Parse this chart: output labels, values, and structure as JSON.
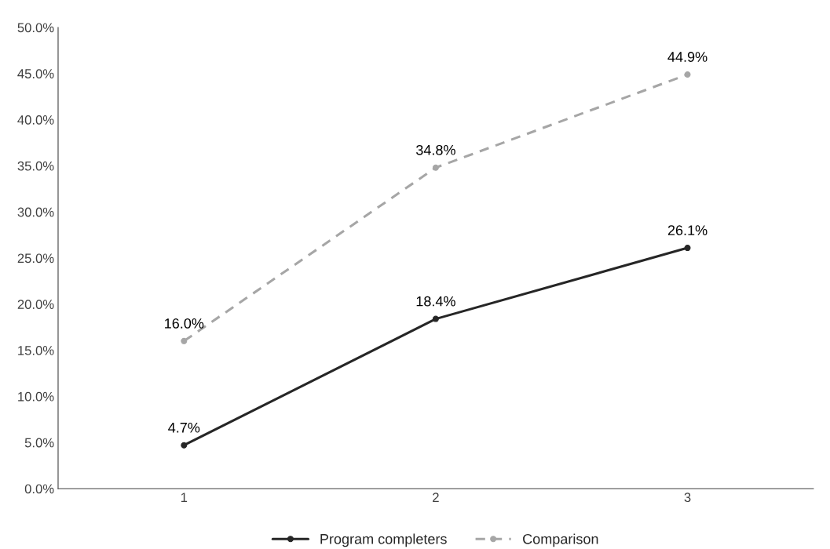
{
  "chart_data": {
    "type": "line",
    "categories": [
      "1",
      "2",
      "3"
    ],
    "series": [
      {
        "name": "Program completers",
        "color": "#262626",
        "values": [
          4.7,
          18.4,
          26.1
        ],
        "value_labels": [
          "4.7%",
          "18.4%",
          "26.1%"
        ],
        "line_style": "solid"
      },
      {
        "name": "Comparison",
        "color": "#a6a6a6",
        "values": [
          16.0,
          34.8,
          44.9
        ],
        "value_labels": [
          "16.0%",
          "34.8%",
          "44.9%"
        ],
        "line_style": "dashed"
      }
    ],
    "ylim": [
      0,
      50
    ],
    "yticks": [
      {
        "value": 0,
        "label": "0.0%"
      },
      {
        "value": 5,
        "label": "5.0%"
      },
      {
        "value": 10,
        "label": "10.0%"
      },
      {
        "value": 15,
        "label": "15.0%"
      },
      {
        "value": 20,
        "label": "20.0%"
      },
      {
        "value": 25,
        "label": "25.0%"
      },
      {
        "value": 30,
        "label": "30.0%"
      },
      {
        "value": 35,
        "label": "35.0%"
      },
      {
        "value": 40,
        "label": "40.0%"
      },
      {
        "value": 45,
        "label": "45.0%"
      },
      {
        "value": 50,
        "label": "50.0%"
      }
    ],
    "grid": false,
    "legend": "bottom",
    "marker": "circle"
  }
}
